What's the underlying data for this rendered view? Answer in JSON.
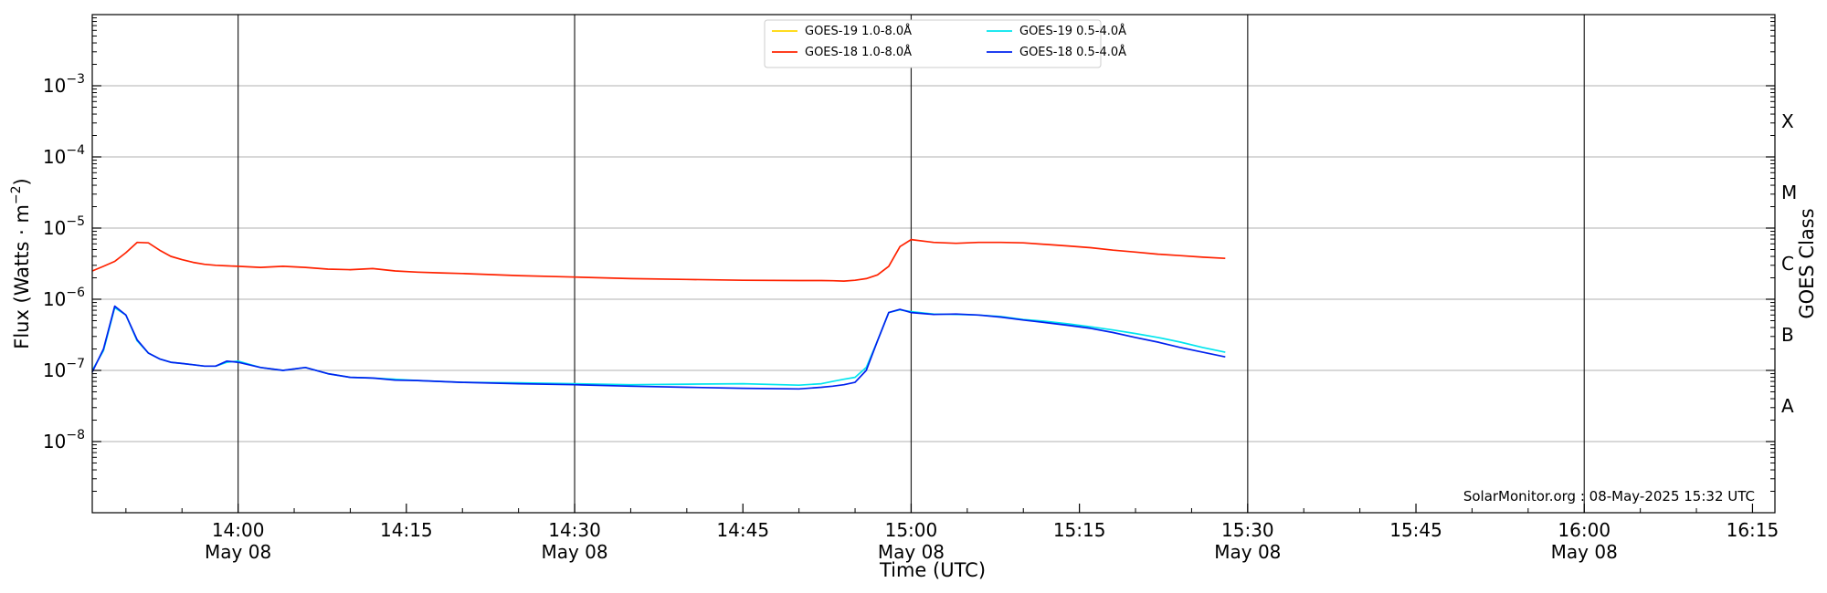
{
  "chart_data": {
    "type": "line",
    "ylabel": "Flux (Watts · m",
    "ylabel_sup": "−2",
    "ylabel_tail": ")",
    "xlabel": "Time (UTC)",
    "right_label": "GOES Class",
    "y_scale": "log",
    "ylim": [
      1e-09,
      0.01
    ],
    "xlim": [
      "2025-05-08T13:47",
      "2025-05-08T16:17"
    ],
    "y_ticks": [
      {
        "value": 1e-08,
        "base": "10",
        "exp": "−8"
      },
      {
        "value": 1e-07,
        "base": "10",
        "exp": "−7"
      },
      {
        "value": 1e-06,
        "base": "10",
        "exp": "−6"
      },
      {
        "value": 1e-05,
        "base": "10",
        "exp": "−5"
      },
      {
        "value": 0.0001,
        "base": "10",
        "exp": "−4"
      },
      {
        "value": 0.001,
        "base": "10",
        "exp": "−3"
      }
    ],
    "x_ticks": [
      {
        "t": "2025-05-08T14:00",
        "label": "14:00",
        "sublabel": "May 08",
        "major": true
      },
      {
        "t": "2025-05-08T14:15",
        "label": "14:15",
        "sublabel": "",
        "major": false
      },
      {
        "t": "2025-05-08T14:30",
        "label": "14:30",
        "sublabel": "May 08",
        "major": true
      },
      {
        "t": "2025-05-08T14:45",
        "label": "14:45",
        "sublabel": "",
        "major": false
      },
      {
        "t": "2025-05-08T15:00",
        "label": "15:00",
        "sublabel": "May 08",
        "major": true
      },
      {
        "t": "2025-05-08T15:15",
        "label": "15:15",
        "sublabel": "",
        "major": false
      },
      {
        "t": "2025-05-08T15:30",
        "label": "15:30",
        "sublabel": "May 08",
        "major": true
      },
      {
        "t": "2025-05-08T15:45",
        "label": "15:45",
        "sublabel": "",
        "major": false
      },
      {
        "t": "2025-05-08T16:00",
        "label": "16:00",
        "sublabel": "May 08",
        "major": true
      },
      {
        "t": "2025-05-08T16:15",
        "label": "16:15",
        "sublabel": "",
        "major": false
      }
    ],
    "goes_classes": [
      {
        "label": "A",
        "value": 3.16e-08
      },
      {
        "label": "B",
        "value": 3.16e-07
      },
      {
        "label": "C",
        "value": 3.16e-06
      },
      {
        "label": "M",
        "value": 3.16e-05
      },
      {
        "label": "X",
        "value": 0.000316
      }
    ],
    "grid": true,
    "legend_position": "top-center",
    "legend_layout": "two columns",
    "series": [
      {
        "name": "GOES-19 1.0-8.0Å",
        "color": "#ffd700",
        "legend_order": 0,
        "x": [],
        "y": []
      },
      {
        "name": "GOES-18 1.0-8.0Å",
        "color": "#ff2200",
        "legend_order": 1,
        "x": [
          "13:47",
          "13:48",
          "13:49",
          "13:50",
          "13:51",
          "13:52",
          "13:53",
          "13:54",
          "13:55",
          "13:56",
          "13:57",
          "13:58",
          "13:59",
          "14:00",
          "14:02",
          "14:04",
          "14:06",
          "14:08",
          "14:10",
          "14:12",
          "14:14",
          "14:16",
          "14:18",
          "14:20",
          "14:25",
          "14:30",
          "14:35",
          "14:40",
          "14:45",
          "14:50",
          "14:52",
          "14:53",
          "14:54",
          "14:55",
          "14:56",
          "14:57",
          "14:58",
          "14:59",
          "15:00",
          "15:02",
          "15:04",
          "15:06",
          "15:08",
          "15:10",
          "15:12",
          "15:14",
          "15:16",
          "15:18",
          "15:20",
          "15:22",
          "15:24",
          "15:26",
          "15:28"
        ],
        "y": [
          2.5e-06,
          2.9e-06,
          3.4e-06,
          4.5e-06,
          6.3e-06,
          6.2e-06,
          4.9e-06,
          4e-06,
          3.6e-06,
          3.3e-06,
          3.1e-06,
          3e-06,
          2.95e-06,
          2.9e-06,
          2.8e-06,
          2.9e-06,
          2.8e-06,
          2.65e-06,
          2.6e-06,
          2.7e-06,
          2.5e-06,
          2.4e-06,
          2.35e-06,
          2.3e-06,
          2.15e-06,
          2.05e-06,
          1.95e-06,
          1.9e-06,
          1.85e-06,
          1.83e-06,
          1.83e-06,
          1.82e-06,
          1.8e-06,
          1.85e-06,
          1.95e-06,
          2.2e-06,
          2.9e-06,
          5.5e-06,
          6.9e-06,
          6.3e-06,
          6.1e-06,
          6.3e-06,
          6.3e-06,
          6.2e-06,
          5.9e-06,
          5.6e-06,
          5.3e-06,
          4.9e-06,
          4.6e-06,
          4.3e-06,
          4.1e-06,
          3.9e-06,
          3.75e-06
        ]
      },
      {
        "name": "GOES-19 0.5-4.0Å",
        "color": "#00e5ee",
        "legend_order": 2,
        "x": [
          "13:47",
          "13:48",
          "13:49",
          "13:50",
          "13:51",
          "13:52",
          "13:53",
          "13:54",
          "13:55",
          "13:56",
          "13:57",
          "13:58",
          "13:59",
          "14:00",
          "14:02",
          "14:04",
          "14:06",
          "14:08",
          "14:10",
          "14:12",
          "14:14",
          "14:16",
          "14:18",
          "14:20",
          "14:25",
          "14:30",
          "14:35",
          "14:40",
          "14:45",
          "14:50",
          "14:52",
          "14:53",
          "14:54",
          "14:55",
          "14:56",
          "14:57",
          "14:58",
          "14:59",
          "15:00",
          "15:02",
          "15:04",
          "15:06",
          "15:08",
          "15:10",
          "15:12",
          "15:14",
          "15:16",
          "15:18",
          "15:20",
          "15:22",
          "15:24",
          "15:26",
          "15:28"
        ],
        "y": [
          1e-07,
          1.9e-07,
          7.6e-07,
          6e-07,
          2.6e-07,
          1.75e-07,
          1.45e-07,
          1.3e-07,
          1.25e-07,
          1.2e-07,
          1.15e-07,
          1.15e-07,
          1.3e-07,
          1.35e-07,
          1.1e-07,
          1e-07,
          1.1e-07,
          9e-08,
          8e-08,
          7.8e-08,
          7.5e-08,
          7.2e-08,
          7e-08,
          6.8e-08,
          6.7e-08,
          6.5e-08,
          6.3e-08,
          6.4e-08,
          6.5e-08,
          6.2e-08,
          6.5e-08,
          7e-08,
          7.5e-08,
          8e-08,
          1.1e-07,
          2.6e-07,
          6.5e-07,
          7.1e-07,
          6.7e-07,
          6.2e-07,
          6.1e-07,
          6e-07,
          5.7e-07,
          5.2e-07,
          4.9e-07,
          4.5e-07,
          4.1e-07,
          3.7e-07,
          3.3e-07,
          2.9e-07,
          2.5e-07,
          2.1e-07,
          1.8e-07
        ]
      },
      {
        "name": "GOES-18 0.5-4.0Å",
        "color": "#0022ee",
        "legend_order": 3,
        "x": [
          "13:47",
          "13:48",
          "13:49",
          "13:50",
          "13:51",
          "13:52",
          "13:53",
          "13:54",
          "13:55",
          "13:56",
          "13:57",
          "13:58",
          "13:59",
          "14:00",
          "14:02",
          "14:04",
          "14:06",
          "14:08",
          "14:10",
          "14:12",
          "14:14",
          "14:16",
          "14:18",
          "14:20",
          "14:25",
          "14:30",
          "14:35",
          "14:40",
          "14:45",
          "14:50",
          "14:52",
          "14:53",
          "14:54",
          "14:55",
          "14:56",
          "14:57",
          "14:58",
          "14:59",
          "15:00",
          "15:02",
          "15:04",
          "15:06",
          "15:08",
          "15:10",
          "15:12",
          "15:14",
          "15:16",
          "15:18",
          "15:20",
          "15:22",
          "15:24",
          "15:26",
          "15:28"
        ],
        "y": [
          9.5e-08,
          2e-07,
          8e-07,
          6e-07,
          2.7e-07,
          1.75e-07,
          1.45e-07,
          1.3e-07,
          1.25e-07,
          1.2e-07,
          1.15e-07,
          1.15e-07,
          1.35e-07,
          1.3e-07,
          1.1e-07,
          1e-07,
          1.1e-07,
          9e-08,
          8e-08,
          7.8e-08,
          7.3e-08,
          7.2e-08,
          7e-08,
          6.8e-08,
          6.5e-08,
          6.3e-08,
          6e-08,
          5.8e-08,
          5.6e-08,
          5.5e-08,
          5.8e-08,
          6e-08,
          6.3e-08,
          6.8e-08,
          1e-07,
          2.6e-07,
          6.5e-07,
          7.2e-07,
          6.5e-07,
          6.1e-07,
          6.2e-07,
          6e-07,
          5.6e-07,
          5.1e-07,
          4.7e-07,
          4.3e-07,
          3.9e-07,
          3.4e-07,
          2.9e-07,
          2.5e-07,
          2.1e-07,
          1.8e-07,
          1.55e-07
        ]
      }
    ],
    "annotations": [
      {
        "text": "SolarMonitor.org : 08-May-2025 15:32 UTC",
        "position": "bottom-right"
      }
    ]
  }
}
